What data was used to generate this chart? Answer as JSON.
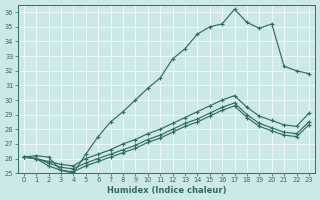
{
  "xlabel": "Humidex (Indice chaleur)",
  "ylabel": "",
  "bg_color": "#cce8e8",
  "grid_color": "#b8d8d8",
  "line_color": "#2e6e62",
  "xlim": [
    -0.5,
    23.5
  ],
  "ylim": [
    25.0,
    36.5
  ],
  "yticks": [
    25,
    26,
    27,
    28,
    29,
    30,
    31,
    32,
    33,
    34,
    35,
    36
  ],
  "xticks": [
    0,
    1,
    2,
    3,
    4,
    5,
    6,
    7,
    8,
    9,
    10,
    11,
    12,
    13,
    14,
    15,
    16,
    17,
    18,
    19,
    20,
    21,
    22,
    23
  ],
  "line1_x": [
    0,
    1,
    2,
    3,
    4,
    5,
    6,
    7,
    8,
    9,
    10,
    11,
    12,
    13,
    14,
    15,
    16,
    17,
    18,
    19,
    20,
    21,
    22,
    23
  ],
  "line1_y": [
    26.1,
    26.2,
    26.1,
    25.2,
    25.0,
    26.3,
    27.5,
    28.5,
    29.2,
    30.0,
    30.8,
    31.5,
    32.8,
    33.5,
    34.5,
    35.0,
    35.2,
    36.2,
    35.3,
    34.9,
    35.2,
    32.3,
    32.0,
    31.8
  ],
  "line2_x": [
    0,
    1,
    2,
    3,
    4,
    5,
    6,
    7,
    8,
    9,
    10,
    11,
    12,
    13,
    14,
    15,
    16,
    17,
    18,
    19,
    20,
    21,
    22,
    23
  ],
  "line2_y": [
    26.1,
    26.0,
    25.8,
    25.6,
    25.5,
    26.0,
    26.3,
    26.6,
    27.0,
    27.3,
    27.7,
    28.0,
    28.4,
    28.8,
    29.2,
    29.6,
    30.0,
    30.3,
    29.5,
    28.9,
    28.6,
    28.3,
    28.2,
    29.1
  ],
  "line3_x": [
    0,
    1,
    2,
    3,
    4,
    5,
    6,
    7,
    8,
    9,
    10,
    11,
    12,
    13,
    14,
    15,
    16,
    17,
    18,
    19,
    20,
    21,
    22,
    23
  ],
  "line3_y": [
    26.1,
    26.0,
    25.7,
    25.4,
    25.3,
    25.7,
    26.0,
    26.3,
    26.6,
    26.9,
    27.3,
    27.6,
    28.0,
    28.4,
    28.7,
    29.1,
    29.5,
    29.8,
    29.0,
    28.4,
    28.1,
    27.8,
    27.7,
    28.5
  ],
  "line4_x": [
    0,
    1,
    2,
    3,
    4,
    5,
    6,
    7,
    8,
    9,
    10,
    11,
    12,
    13,
    14,
    15,
    16,
    17,
    18,
    19,
    20,
    21,
    22,
    23
  ],
  "line4_y": [
    26.1,
    26.0,
    25.5,
    25.2,
    25.1,
    25.5,
    25.8,
    26.1,
    26.4,
    26.7,
    27.1,
    27.4,
    27.8,
    28.2,
    28.5,
    28.9,
    29.3,
    29.6,
    28.8,
    28.2,
    27.9,
    27.6,
    27.5,
    28.3
  ]
}
